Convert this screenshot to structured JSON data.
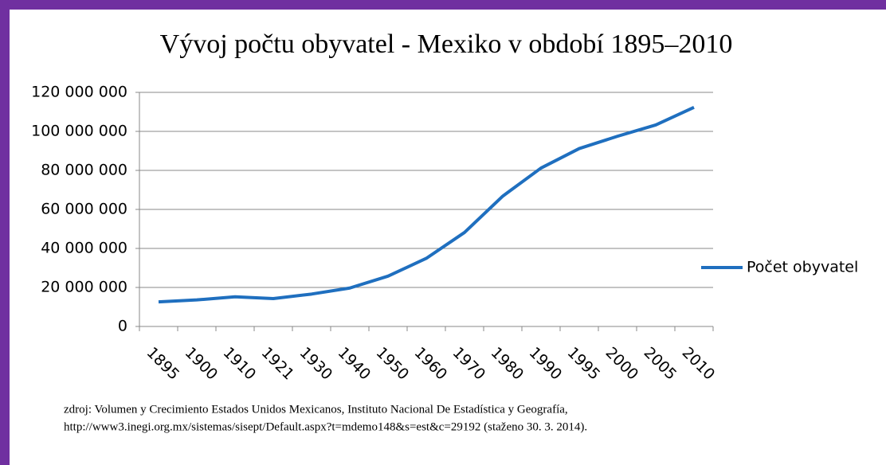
{
  "chart_data": {
    "type": "line",
    "title": "Vývoj počtu obyvatel - Mexiko v období 1895–2010",
    "categories": [
      "1895",
      "1900",
      "1910",
      "1921",
      "1930",
      "1940",
      "1950",
      "1960",
      "1970",
      "1980",
      "1990",
      "1995",
      "2000",
      "2005",
      "2010"
    ],
    "series": [
      {
        "name": "Počet obyvatel",
        "color": "#1f6fbf",
        "values": [
          12600000,
          13600000,
          15200000,
          14300000,
          16600000,
          19700000,
          25800000,
          34900000,
          48200000,
          66800000,
          81200000,
          91200000,
          97500000,
          103300000,
          112300000
        ]
      }
    ],
    "ylim": [
      0,
      120000000
    ],
    "yticks": [
      0,
      {
        "value": 20000000,
        "label": "20 000 000"
      },
      {
        "value": 40000000,
        "label": "40 000 000"
      },
      {
        "value": 60000000,
        "label": "60 000 000"
      },
      {
        "value": 80000000,
        "label": "80 000 000"
      },
      {
        "value": 100000000,
        "label": "100 000 000"
      },
      {
        "value": 120000000,
        "label": "120 000 000"
      }
    ],
    "grid": true,
    "legend": "right",
    "source": [
      "zdroj: Volumen y Crecimiento Estados Unidos Mexicanos, Instituto Nacional De Estadística y Geografía,",
      "http://www3.inegi.org.mx/sistemas/sisept/Default.aspx?t=mdemo148&s=est&c=29192 (staženo  30. 3. 2014)."
    ]
  }
}
